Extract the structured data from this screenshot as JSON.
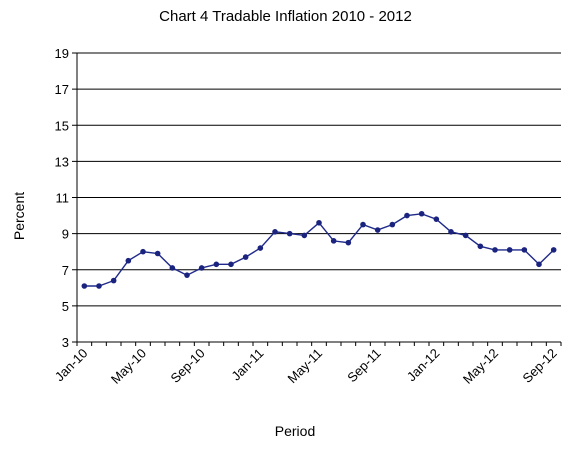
{
  "chart_data": {
    "type": "line",
    "title": "Chart 4 Tradable Inflation 2010 - 2012",
    "xlabel": "Period",
    "ylabel": "Percent",
    "ylim": [
      3,
      19
    ],
    "yticks": [
      3,
      5,
      7,
      9,
      11,
      13,
      15,
      17,
      19
    ],
    "grid": "horizontal",
    "legend": "none",
    "x": [
      "Jan-10",
      "Feb-10",
      "Mar-10",
      "Apr-10",
      "May-10",
      "Jun-10",
      "Jul-10",
      "Aug-10",
      "Sep-10",
      "Oct-10",
      "Nov-10",
      "Dec-10",
      "Jan-11",
      "Feb-11",
      "Mar-11",
      "Apr-11",
      "May-11",
      "Jun-11",
      "Jul-11",
      "Aug-11",
      "Sep-11",
      "Oct-11",
      "Nov-11",
      "Dec-11",
      "Jan-12",
      "Feb-12",
      "Mar-12",
      "Apr-12",
      "May-12",
      "Jun-12",
      "Jul-12",
      "Aug-12",
      "Sep-12"
    ],
    "xtick_labels": [
      "Jan-10",
      "May-10",
      "Sep-10",
      "Jan-11",
      "May-11",
      "Sep-11",
      "Jan-12",
      "May-12",
      "Sep-12"
    ],
    "series": [
      {
        "values": [
          6.1,
          6.1,
          6.4,
          7.5,
          8.0,
          7.9,
          7.1,
          6.7,
          7.1,
          7.3,
          7.3,
          7.7,
          8.2,
          9.1,
          9.0,
          8.9,
          9.6,
          8.6,
          8.5,
          9.5,
          9.2,
          9.5,
          10.0,
          10.1,
          9.8,
          9.1,
          8.9,
          8.3,
          8.1,
          8.1,
          8.1,
          7.3,
          8.1
        ]
      }
    ],
    "colors": {
      "line": "#1f2a8a",
      "marker": "#1a237e",
      "grid": "#000000",
      "axis": "#000000"
    }
  }
}
